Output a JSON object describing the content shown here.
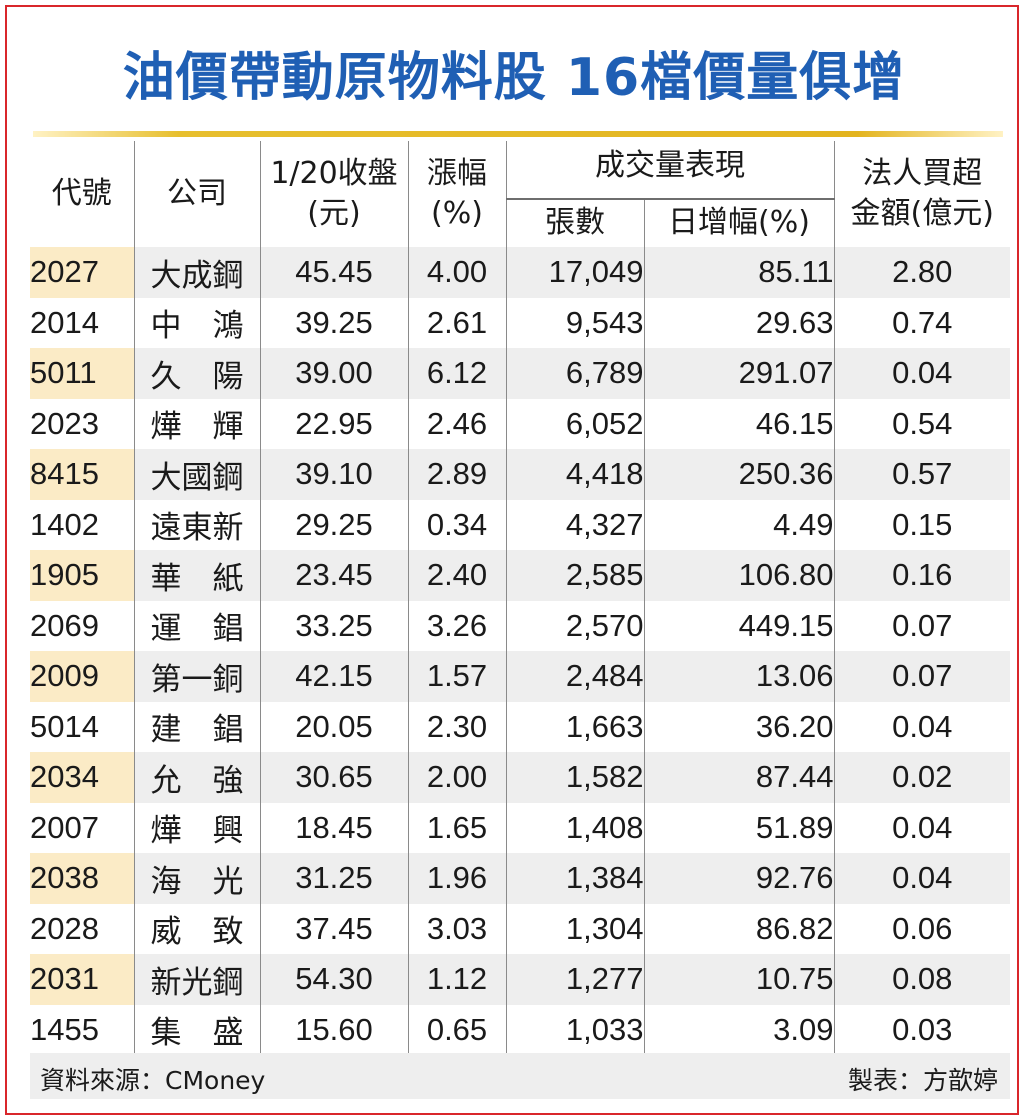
{
  "title": "油價帶動原物料股 16檔價量俱增",
  "headers": {
    "code": "代號",
    "company": "公司",
    "close_line1": "1/20收盤",
    "close_line2": "(元)",
    "change_line1": "漲幅",
    "change_line2": "(%)",
    "volume_group": "成交量表現",
    "volume_lots": "張數",
    "volume_daily_pct": "日增幅(%)",
    "inst_line1": "法人買超",
    "inst_line2": "金額(億元)"
  },
  "rows": [
    {
      "code": "2027",
      "company": "大成鋼",
      "close": "45.45",
      "change": "4.00",
      "lots": "17,049",
      "daily_pct": "85.11",
      "inst": "2.80"
    },
    {
      "code": "2014",
      "company": "中　鴻",
      "close": "39.25",
      "change": "2.61",
      "lots": "9,543",
      "daily_pct": "29.63",
      "inst": "0.74"
    },
    {
      "code": "5011",
      "company": "久　陽",
      "close": "39.00",
      "change": "6.12",
      "lots": "6,789",
      "daily_pct": "291.07",
      "inst": "0.04"
    },
    {
      "code": "2023",
      "company": "燁　輝",
      "close": "22.95",
      "change": "2.46",
      "lots": "6,052",
      "daily_pct": "46.15",
      "inst": "0.54"
    },
    {
      "code": "8415",
      "company": "大國鋼",
      "close": "39.10",
      "change": "2.89",
      "lots": "4,418",
      "daily_pct": "250.36",
      "inst": "0.57"
    },
    {
      "code": "1402",
      "company": "遠東新",
      "close": "29.25",
      "change": "0.34",
      "lots": "4,327",
      "daily_pct": "4.49",
      "inst": "0.15"
    },
    {
      "code": "1905",
      "company": "華　紙",
      "close": "23.45",
      "change": "2.40",
      "lots": "2,585",
      "daily_pct": "106.80",
      "inst": "0.16"
    },
    {
      "code": "2069",
      "company": "運　錩",
      "close": "33.25",
      "change": "3.26",
      "lots": "2,570",
      "daily_pct": "449.15",
      "inst": "0.07"
    },
    {
      "code": "2009",
      "company": "第一銅",
      "close": "42.15",
      "change": "1.57",
      "lots": "2,484",
      "daily_pct": "13.06",
      "inst": "0.07"
    },
    {
      "code": "5014",
      "company": "建　錩",
      "close": "20.05",
      "change": "2.30",
      "lots": "1,663",
      "daily_pct": "36.20",
      "inst": "0.04"
    },
    {
      "code": "2034",
      "company": "允　強",
      "close": "30.65",
      "change": "2.00",
      "lots": "1,582",
      "daily_pct": "87.44",
      "inst": "0.02"
    },
    {
      "code": "2007",
      "company": "燁　興",
      "close": "18.45",
      "change": "1.65",
      "lots": "1,408",
      "daily_pct": "51.89",
      "inst": "0.04"
    },
    {
      "code": "2038",
      "company": "海　光",
      "close": "31.25",
      "change": "1.96",
      "lots": "1,384",
      "daily_pct": "92.76",
      "inst": "0.04"
    },
    {
      "code": "2028",
      "company": "威　致",
      "close": "37.45",
      "change": "3.03",
      "lots": "1,304",
      "daily_pct": "86.82",
      "inst": "0.06"
    },
    {
      "code": "2031",
      "company": "新光鋼",
      "close": "54.30",
      "change": "1.12",
      "lots": "1,277",
      "daily_pct": "10.75",
      "inst": "0.08"
    },
    {
      "code": "1455",
      "company": "集　盛",
      "close": "15.60",
      "change": "0.65",
      "lots": "1,033",
      "daily_pct": "3.09",
      "inst": "0.03"
    }
  ],
  "footer": {
    "source": "資料來源：CMoney",
    "maker": "製表：方歆婷"
  },
  "colors": {
    "title": "#1f5fb4",
    "frame_border": "#d9262b",
    "gold_rule": "#e3b41e",
    "code_highlight": "#fbebc6",
    "stripe": "#eeeeee"
  }
}
